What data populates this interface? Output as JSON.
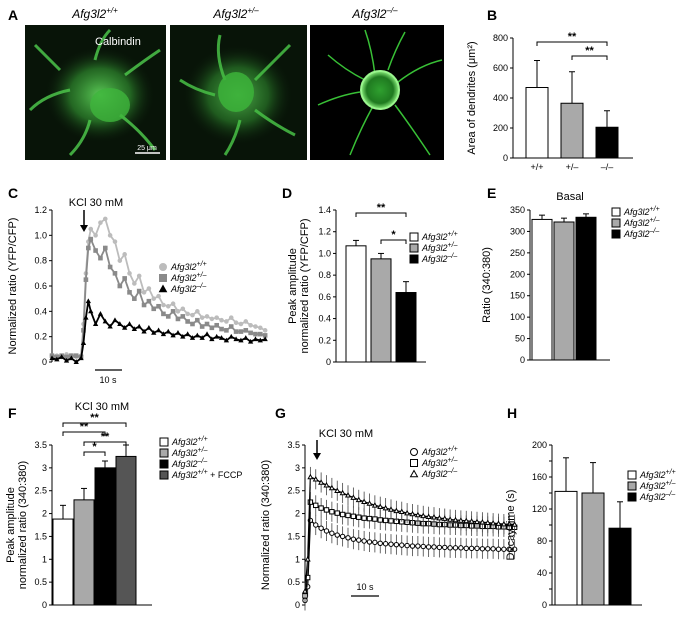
{
  "panels": {
    "A": {
      "letter": "A",
      "images": [
        {
          "genotype": "Afg3l2",
          "sup": "+/+",
          "stain": "Calbindin",
          "scalebar": "25 μm"
        },
        {
          "genotype": "Afg3l2",
          "sup": "+/–"
        },
        {
          "genotype": "Afg3l2",
          "sup": "–/–"
        }
      ]
    },
    "B": {
      "letter": "B"
    },
    "C": {
      "letter": "C",
      "stimulus": "KCl 30 mM",
      "timebar": "10 s"
    },
    "D": {
      "letter": "D"
    },
    "E": {
      "letter": "E"
    },
    "F": {
      "letter": "F",
      "stimulus": "KCl 30 mM"
    },
    "G": {
      "letter": "G",
      "stimulus": "KCl 30 mM",
      "timebar": "10 s"
    },
    "H": {
      "letter": "H"
    }
  },
  "colors": {
    "wt": "#ffffff",
    "het": "#a9a9a9",
    "ko": "#000000",
    "fccp": "#555555",
    "trace_wt": "#bcbcbc",
    "trace_het": "#8a8a8a",
    "trace_ko": "#000000",
    "green": "#39d13a"
  },
  "chart_data": [
    {
      "id": "B",
      "type": "bar",
      "categories": [
        "+/+",
        "+/–",
        "–/–"
      ],
      "values": [
        470,
        365,
        205
      ],
      "errors": [
        180,
        210,
        110
      ],
      "ylabel": "Area of dendrites (μm²)",
      "ylim": [
        0,
        800
      ],
      "yticks": [
        0,
        200,
        400,
        600,
        800
      ],
      "significance": [
        {
          "pair": [
            0,
            2
          ],
          "label": "**"
        },
        {
          "pair": [
            1,
            2
          ],
          "label": "**"
        }
      ]
    },
    {
      "id": "C",
      "type": "line",
      "ylabel": "Normalized ratio (YFP/CFP)",
      "ylim": [
        0,
        1.2
      ],
      "yticks": [
        0,
        0.2,
        0.4,
        0.6,
        0.8,
        1.0,
        1.2
      ],
      "yticklabels": [
        "0",
        "0.2",
        "0.4",
        "0.6",
        "0.8",
        "1.0",
        "1.2"
      ],
      "xlim": [
        0,
        90
      ],
      "stimulus_time": 12,
      "series": [
        {
          "name": "Afg3l2",
          "sup": "+/+",
          "marker": "circle",
          "x": [
            0,
            2,
            4,
            6,
            8,
            10,
            12,
            13,
            14,
            15,
            16,
            18,
            20,
            22,
            24,
            26,
            28,
            30,
            32,
            34,
            36,
            38,
            40,
            42,
            44,
            46,
            48,
            50,
            52,
            54,
            56,
            58,
            60,
            62,
            64,
            66,
            68,
            70,
            72,
            74,
            76,
            78,
            80,
            82,
            84,
            86,
            88
          ],
          "y": [
            0.05,
            0.05,
            0.04,
            0.06,
            0.05,
            0.04,
            0.05,
            0.3,
            0.7,
            0.95,
            1.05,
            1.0,
            1.1,
            1.13,
            1.0,
            0.95,
            0.8,
            0.85,
            0.7,
            0.62,
            0.68,
            0.55,
            0.58,
            0.5,
            0.52,
            0.45,
            0.44,
            0.46,
            0.4,
            0.42,
            0.38,
            0.37,
            0.4,
            0.35,
            0.36,
            0.34,
            0.35,
            0.33,
            0.32,
            0.35,
            0.31,
            0.3,
            0.32,
            0.29,
            0.28,
            0.27,
            0.25
          ]
        },
        {
          "name": "Afg3l2",
          "sup": "+/–",
          "marker": "square",
          "x": [
            0,
            2,
            4,
            6,
            8,
            10,
            12,
            13,
            14,
            15,
            16,
            18,
            20,
            22,
            24,
            26,
            28,
            30,
            32,
            34,
            36,
            38,
            40,
            42,
            44,
            46,
            48,
            50,
            52,
            54,
            56,
            58,
            60,
            62,
            64,
            66,
            68,
            70,
            72,
            74,
            76,
            78,
            80,
            82,
            84,
            86,
            88
          ],
          "y": [
            0.05,
            0.04,
            0.05,
            0.04,
            0.05,
            0.05,
            0.04,
            0.25,
            0.65,
            0.9,
            0.97,
            0.88,
            0.82,
            0.9,
            0.75,
            0.7,
            0.6,
            0.66,
            0.55,
            0.5,
            0.56,
            0.45,
            0.48,
            0.42,
            0.44,
            0.38,
            0.36,
            0.4,
            0.34,
            0.36,
            0.32,
            0.3,
            0.33,
            0.28,
            0.3,
            0.27,
            0.29,
            0.26,
            0.25,
            0.28,
            0.24,
            0.24,
            0.25,
            0.23,
            0.22,
            0.22,
            0.21
          ]
        },
        {
          "name": "Afg3l2",
          "sup": "–/–",
          "marker": "triangle",
          "x": [
            0,
            2,
            4,
            6,
            8,
            10,
            12,
            13,
            14,
            15,
            16,
            18,
            20,
            22,
            24,
            26,
            28,
            30,
            32,
            34,
            36,
            38,
            40,
            42,
            44,
            46,
            48,
            50,
            52,
            54,
            56,
            58,
            60,
            62,
            64,
            66,
            68,
            70,
            72,
            74,
            76,
            78,
            80,
            82,
            84,
            86,
            88
          ],
          "y": [
            0.03,
            0.02,
            0.04,
            0.01,
            0.03,
            0.0,
            0.03,
            0.15,
            0.35,
            0.48,
            0.4,
            0.3,
            0.38,
            0.32,
            0.28,
            0.33,
            0.3,
            0.27,
            0.3,
            0.26,
            0.28,
            0.24,
            0.27,
            0.23,
            0.25,
            0.22,
            0.24,
            0.21,
            0.23,
            0.2,
            0.22,
            0.19,
            0.21,
            0.19,
            0.22,
            0.18,
            0.2,
            0.19,
            0.17,
            0.2,
            0.18,
            0.17,
            0.19,
            0.16,
            0.18,
            0.17,
            0.18
          ]
        }
      ]
    },
    {
      "id": "D",
      "type": "bar",
      "categories": [
        "Afg3l2 +/+",
        "Afg3l2 +/–",
        "Afg3l2 –/–"
      ],
      "values": [
        1.07,
        0.95,
        0.64
      ],
      "errors": [
        0.05,
        0.05,
        0.1
      ],
      "ylabel": "Peak amplitude normalized ratio (YFP/CFP)",
      "ylabel_lines": [
        "Peak amplitude",
        "normalized ratio (YFP/CFP)"
      ],
      "ylim": [
        0,
        1.4
      ],
      "yticks": [
        0,
        0.2,
        0.4,
        0.6,
        0.8,
        1.0,
        1.2,
        1.4
      ],
      "yticklabels": [
        "0",
        "0.2",
        "0.4",
        "0.6",
        "0.8",
        "1.0",
        "1.2",
        "1.4"
      ],
      "legend": [
        {
          "name": "Afg3l2",
          "sup": "+/+"
        },
        {
          "name": "Afg3l2",
          "sup": "+/–"
        },
        {
          "name": "Afg3l2",
          "sup": "–/–"
        }
      ],
      "significance": [
        {
          "pair": [
            0,
            2
          ],
          "label": "**"
        },
        {
          "pair": [
            1,
            2
          ],
          "label": "*"
        }
      ]
    },
    {
      "id": "E",
      "type": "bar",
      "title": "Basal",
      "categories": [
        "Afg3l2 +/+",
        "Afg3l2 +/–",
        "Afg3l2 –/–"
      ],
      "values": [
        328,
        322,
        333
      ],
      "errors": [
        10,
        9,
        8
      ],
      "ylabel": "Ratio (340:380)",
      "ylim": [
        0,
        350
      ],
      "yticks": [
        0,
        50,
        100,
        150,
        200,
        250,
        300,
        350
      ],
      "legend": [
        {
          "name": "Afg3l2",
          "sup": "+/+"
        },
        {
          "name": "Afg3l2",
          "sup": "+/–"
        },
        {
          "name": "Afg3l2",
          "sup": "–/–"
        }
      ]
    },
    {
      "id": "F",
      "type": "bar",
      "categories": [
        "Afg3l2 +/+",
        "Afg3l2 +/–",
        "Afg3l2 –/–",
        "Afg3l2 +/+ + FCCP"
      ],
      "values": [
        1.88,
        2.3,
        3.0,
        3.25
      ],
      "errors": [
        0.3,
        0.25,
        0.15,
        0.25
      ],
      "ylabel": "Peak amplitude normalized ratio (340:380)",
      "ylabel_lines": [
        "Peak amplitude",
        "normalized ratio (340:380)"
      ],
      "ylim": [
        0,
        3.5
      ],
      "yticks": [
        0,
        0.5,
        1.0,
        1.5,
        2.0,
        2.5,
        3.0,
        3.5
      ],
      "yticklabels": [
        "0",
        "0.5",
        "1",
        "1.5",
        "2",
        "2.5",
        "3",
        "3.5"
      ],
      "legend": [
        {
          "name": "Afg3l2",
          "sup": "+/+"
        },
        {
          "name": "Afg3l2",
          "sup": "+/–"
        },
        {
          "name": "Afg3l2",
          "sup": "–/–"
        },
        {
          "name": "Afg3l2",
          "sup": "+/+",
          "extra": " + FCCP"
        }
      ],
      "significance": [
        {
          "pair": [
            0,
            3
          ],
          "label": "**"
        },
        {
          "pair": [
            0,
            2
          ],
          "label": "**"
        },
        {
          "pair": [
            1,
            3
          ],
          "label": "**"
        },
        {
          "pair": [
            1,
            2
          ],
          "label": "*"
        }
      ]
    },
    {
      "id": "G",
      "type": "line",
      "ylabel": "Normalized ratio (340:380)",
      "ylim": [
        0,
        3.5
      ],
      "yticks": [
        0,
        0.5,
        1.0,
        1.5,
        2.0,
        2.5,
        3.0,
        3.5
      ],
      "yticklabels": [
        "0",
        "0.5",
        "1",
        "1.5",
        "2",
        "2.5",
        "3",
        "3.5"
      ],
      "xlim": [
        0,
        80
      ],
      "series": [
        {
          "name": "Afg3l2",
          "sup": "+/+",
          "marker": "circle",
          "x": [
            0,
            1,
            2,
            4,
            6,
            8,
            10,
            12,
            14,
            16,
            18,
            20,
            22,
            24,
            26,
            28,
            30,
            32,
            34,
            36,
            38,
            40,
            42,
            44,
            46,
            48,
            50,
            52,
            54,
            56,
            58,
            60,
            62,
            64,
            66,
            68,
            70,
            72,
            74,
            76,
            78
          ],
          "y": [
            0.1,
            0.4,
            1.85,
            1.75,
            1.68,
            1.62,
            1.57,
            1.53,
            1.5,
            1.47,
            1.44,
            1.42,
            1.4,
            1.38,
            1.37,
            1.35,
            1.34,
            1.33,
            1.32,
            1.31,
            1.3,
            1.29,
            1.29,
            1.28,
            1.27,
            1.27,
            1.26,
            1.26,
            1.25,
            1.25,
            1.25,
            1.24,
            1.24,
            1.24,
            1.23,
            1.23,
            1.23,
            1.22,
            1.22,
            1.22,
            1.22
          ]
        },
        {
          "name": "Afg3l2",
          "sup": "+/–",
          "marker": "square",
          "x": [
            0,
            1,
            2,
            4,
            6,
            8,
            10,
            12,
            14,
            16,
            18,
            20,
            22,
            24,
            26,
            28,
            30,
            32,
            34,
            36,
            38,
            40,
            42,
            44,
            46,
            48,
            50,
            52,
            54,
            56,
            58,
            60,
            62,
            64,
            66,
            68,
            70,
            72,
            74,
            76,
            78
          ],
          "y": [
            0.2,
            0.6,
            2.25,
            2.18,
            2.12,
            2.08,
            2.04,
            2.01,
            1.98,
            1.96,
            1.94,
            1.92,
            1.9,
            1.89,
            1.88,
            1.86,
            1.85,
            1.84,
            1.83,
            1.82,
            1.81,
            1.8,
            1.79,
            1.78,
            1.78,
            1.77,
            1.76,
            1.76,
            1.75,
            1.75,
            1.74,
            1.74,
            1.73,
            1.73,
            1.72,
            1.72,
            1.72,
            1.71,
            1.71,
            1.7,
            1.7
          ]
        },
        {
          "name": "Afg3l2",
          "sup": "–/–",
          "marker": "triangle",
          "x": [
            0,
            1,
            2,
            4,
            6,
            8,
            10,
            12,
            14,
            16,
            18,
            20,
            22,
            24,
            26,
            28,
            30,
            32,
            34,
            36,
            38,
            40,
            42,
            44,
            46,
            48,
            50,
            52,
            54,
            56,
            58,
            60,
            62,
            64,
            66,
            68,
            70,
            72,
            74,
            76,
            78
          ],
          "y": [
            0.3,
            1.0,
            2.8,
            2.75,
            2.68,
            2.62,
            2.56,
            2.5,
            2.45,
            2.4,
            2.35,
            2.3,
            2.26,
            2.22,
            2.18,
            2.15,
            2.12,
            2.09,
            2.06,
            2.04,
            2.01,
            1.99,
            1.97,
            1.95,
            1.93,
            1.92,
            1.9,
            1.89,
            1.87,
            1.86,
            1.85,
            1.84,
            1.83,
            1.82,
            1.81,
            1.8,
            1.79,
            1.78,
            1.77,
            1.77,
            1.76
          ]
        }
      ]
    },
    {
      "id": "H",
      "type": "bar",
      "categories": [
        "Afg3l2 +/+",
        "Afg3l2 +/–",
        "Afg3l2 –/–"
      ],
      "values": [
        142,
        140,
        96
      ],
      "errors": [
        42,
        38,
        33
      ],
      "ylabel": "Decay time (s)",
      "ylim": [
        0,
        200
      ],
      "yticks": [
        0,
        20,
        40,
        60,
        80,
        100,
        120,
        140,
        160,
        180,
        200
      ],
      "yticklabels": [
        "0",
        "",
        "40",
        "",
        "80",
        "",
        "120",
        "",
        "160",
        "",
        "200"
      ],
      "legend": [
        {
          "name": "Afg3l2",
          "sup": "+/+"
        },
        {
          "name": "Afg3l2",
          "sup": "+/–"
        },
        {
          "name": "Afg3l2",
          "sup": "–/–"
        }
      ]
    }
  ]
}
